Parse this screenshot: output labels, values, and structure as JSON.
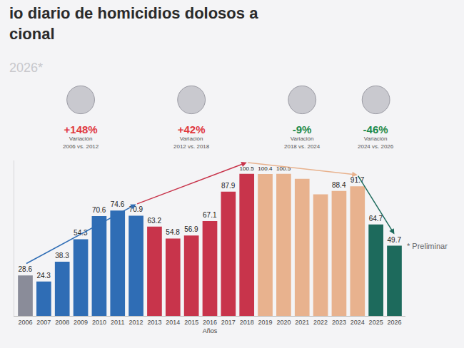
{
  "chart_data": {
    "type": "bar",
    "title": "io diario de homicidios dolosos a\ncional",
    "subtitle": "2026*",
    "x_label": "Años",
    "note": "* Preliminar",
    "categories": [
      "2006",
      "2007",
      "2008",
      "2009",
      "2010",
      "2011",
      "2012",
      "2013",
      "2014",
      "2015",
      "2016",
      "2017",
      "2018",
      "2019",
      "2020",
      "2021",
      "2022",
      "2023",
      "2024",
      "2025",
      "2026"
    ],
    "values": [
      28.6,
      24.3,
      38.3,
      54.3,
      70.6,
      74.6,
      70.9,
      63.2,
      54.8,
      56.9,
      67.1,
      87.9,
      100.5,
      100.4,
      100.5,
      97.0,
      86.0,
      88.4,
      91.7,
      64.7,
      49.7
    ],
    "value_labels": [
      "28.6",
      "24.3",
      "38.3",
      "54.3",
      "70.6",
      "74.6",
      "70.9",
      "63.2",
      "54.8",
      "56.9",
      "67.1",
      "87.9",
      "100.5",
      "100.4",
      "100.5",
      null,
      null,
      "88.4",
      "91.7",
      "64.7",
      "49.7"
    ],
    "colors": [
      "#8a8c99",
      "#2f6db5",
      "#2f6db5",
      "#2f6db5",
      "#2f6db5",
      "#2f6db5",
      "#2f6db5",
      "#c8344b",
      "#c8344b",
      "#c8344b",
      "#c8344b",
      "#c8344b",
      "#c8344b",
      "#e8b28e",
      "#e8b28e",
      "#e8b28e",
      "#e8b28e",
      "#e8b28e",
      "#e8b28e",
      "#1d6a5c",
      "#1d6a5c"
    ],
    "ylim": [
      0,
      110
    ],
    "data_labels": true,
    "tick_labels": "x",
    "grid": false,
    "variations": [
      {
        "value": 148,
        "label": "+148%",
        "caption": "Variación",
        "period": "2006 vs. 2012"
      },
      {
        "value": 42,
        "label": "+42%",
        "caption": "Variación",
        "period": "2012 vs. 2018"
      },
      {
        "value": -9,
        "label": "-9%",
        "caption": "Variación",
        "period": "2018 vs. 2024"
      },
      {
        "value": -46,
        "label": "-46%",
        "caption": "Variación",
        "period": "2024 vs. 2026"
      }
    ]
  }
}
